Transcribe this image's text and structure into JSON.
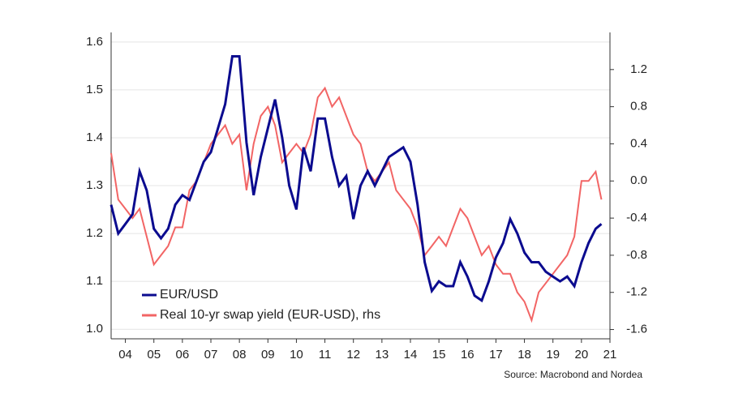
{
  "chart_data": {
    "type": "line",
    "source": "Source: Macrobond and Nordea",
    "x": [
      2004.0,
      2004.25,
      2004.5,
      2004.75,
      2005.0,
      2005.25,
      2005.5,
      2005.75,
      2006.0,
      2006.25,
      2006.5,
      2006.75,
      2007.0,
      2007.25,
      2007.5,
      2007.75,
      2008.0,
      2008.25,
      2008.5,
      2008.75,
      2009.0,
      2009.25,
      2009.5,
      2009.75,
      2010.0,
      2010.25,
      2010.5,
      2010.75,
      2011.0,
      2011.25,
      2011.5,
      2011.75,
      2012.0,
      2012.25,
      2012.5,
      2012.75,
      2013.0,
      2013.25,
      2013.5,
      2013.75,
      2014.0,
      2014.25,
      2014.5,
      2014.75,
      2015.0,
      2015.25,
      2015.5,
      2015.75,
      2016.0,
      2016.25,
      2016.5,
      2016.75,
      2017.0,
      2017.25,
      2017.5,
      2017.75,
      2018.0,
      2018.25,
      2018.5,
      2018.75,
      2019.0,
      2019.25,
      2019.5,
      2019.75,
      2020.0,
      2020.25,
      2020.5,
      2020.75,
      2021.0,
      2021.2
    ],
    "series": [
      {
        "name": "EUR/USD",
        "color": "#0b0b8f",
        "axis": "y",
        "values": [
          1.26,
          1.2,
          1.22,
          1.24,
          1.33,
          1.29,
          1.21,
          1.19,
          1.21,
          1.26,
          1.28,
          1.27,
          1.31,
          1.35,
          1.37,
          1.42,
          1.47,
          1.57,
          1.57,
          1.39,
          1.28,
          1.36,
          1.42,
          1.48,
          1.4,
          1.3,
          1.25,
          1.38,
          1.33,
          1.44,
          1.44,
          1.36,
          1.3,
          1.32,
          1.23,
          1.3,
          1.33,
          1.3,
          1.33,
          1.36,
          1.37,
          1.38,
          1.35,
          1.26,
          1.14,
          1.08,
          1.1,
          1.09,
          1.09,
          1.14,
          1.11,
          1.07,
          1.06,
          1.1,
          1.15,
          1.18,
          1.23,
          1.2,
          1.16,
          1.14,
          1.14,
          1.12,
          1.11,
          1.1,
          1.11,
          1.09,
          1.14,
          1.18,
          1.21,
          1.22
        ]
      },
      {
        "name": "Real 10-yr swap yield (EUR-USD), rhs",
        "color": "#f26565",
        "axis": "y2",
        "values": [
          0.3,
          -0.2,
          -0.3,
          -0.4,
          -0.3,
          -0.6,
          -0.9,
          -0.8,
          -0.7,
          -0.5,
          -0.5,
          -0.1,
          0.0,
          0.2,
          0.4,
          0.5,
          0.6,
          0.4,
          0.5,
          -0.1,
          0.4,
          0.7,
          0.8,
          0.6,
          0.2,
          0.3,
          0.4,
          0.3,
          0.5,
          0.9,
          1.0,
          0.8,
          0.9,
          0.7,
          0.5,
          0.4,
          0.1,
          0.0,
          0.1,
          0.2,
          -0.1,
          -0.2,
          -0.3,
          -0.5,
          -0.8,
          -0.7,
          -0.6,
          -0.7,
          -0.5,
          -0.3,
          -0.4,
          -0.6,
          -0.8,
          -0.7,
          -0.9,
          -1.0,
          -1.0,
          -1.2,
          -1.3,
          -1.5,
          -1.2,
          -1.1,
          -1.0,
          -0.9,
          -0.8,
          -0.6,
          0.0,
          0.0,
          0.1,
          -0.2
        ]
      }
    ],
    "xlim": [
      2004.0,
      2021.5
    ],
    "xticks": [
      {
        "value": 2004.5,
        "label": "04"
      },
      {
        "value": 2005.5,
        "label": "05"
      },
      {
        "value": 2006.5,
        "label": "06"
      },
      {
        "value": 2007.5,
        "label": "07"
      },
      {
        "value": 2008.5,
        "label": "08"
      },
      {
        "value": 2009.5,
        "label": "09"
      },
      {
        "value": 2010.5,
        "label": "10"
      },
      {
        "value": 2011.5,
        "label": "11"
      },
      {
        "value": 2012.5,
        "label": "12"
      },
      {
        "value": 2013.5,
        "label": "13"
      },
      {
        "value": 2014.5,
        "label": "14"
      },
      {
        "value": 2015.5,
        "label": "15"
      },
      {
        "value": 2016.5,
        "label": "16"
      },
      {
        "value": 2017.5,
        "label": "17"
      },
      {
        "value": 2018.5,
        "label": "18"
      },
      {
        "value": 2019.5,
        "label": "19"
      },
      {
        "value": 2020.5,
        "label": "20"
      },
      {
        "value": 2021.5,
        "label": "21"
      }
    ],
    "ylim": [
      0.98,
      1.62
    ],
    "yticks": [
      {
        "value": 1,
        "label": "1.0"
      },
      1.1,
      1.2,
      1.3,
      1.4,
      1.5,
      1.6
    ],
    "y2lim": [
      -1.7,
      1.6
    ],
    "y2ticks": [
      1.2,
      0.8,
      0.4,
      {
        "value": 0,
        "label": "0.0"
      },
      -0.4,
      -0.8,
      -1.2,
      -1.6
    ],
    "grid": true,
    "legend": "lower-left"
  }
}
